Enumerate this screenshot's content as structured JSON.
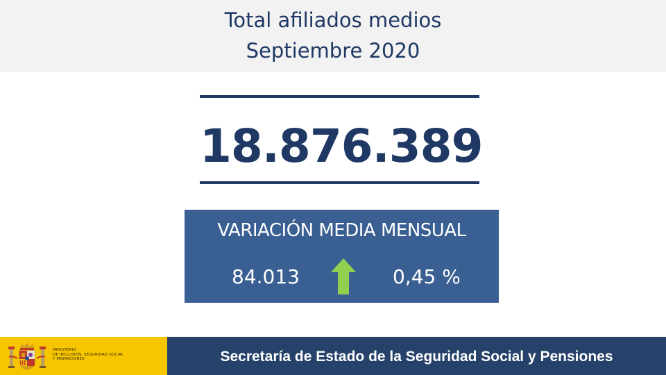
{
  "header": {
    "title_line1": "Total afiliados medios",
    "title_line2": "Septiembre 2020"
  },
  "main": {
    "total": "18.876.389"
  },
  "variation": {
    "title": "VARIACIÓN MEDIA MENSUAL",
    "absolute": "84.013",
    "percent": "0,45 %",
    "direction_icon": "up-arrow-icon",
    "arrow_color": "#8fd14f"
  },
  "footer": {
    "ministry_line1": "MINISTERIO",
    "ministry_line2": "DE INCLUSIÓN, SEGURIDAD SOCIAL",
    "ministry_line3": "Y MIGRACIONES",
    "secretaria": "Secretaría de Estado de la Seguridad Social y Pensiones"
  },
  "colors": {
    "navy": "#1f3864",
    "box_blue": "#3a5f92",
    "footer_blue": "#26416a",
    "footer_yellow": "#f7c600"
  }
}
